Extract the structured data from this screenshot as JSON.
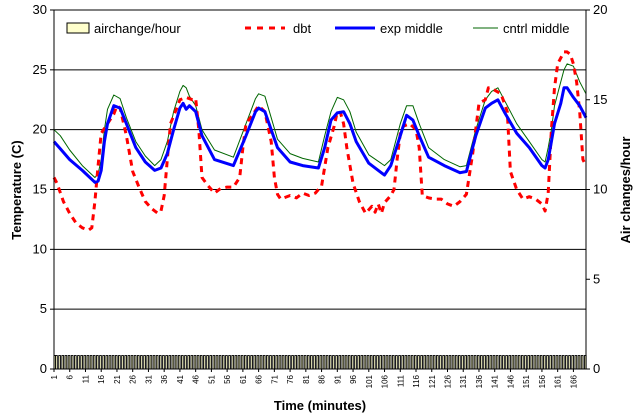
{
  "chart_data": {
    "type": "line",
    "xlabel": "Time (minutes)",
    "ylabel": "Temperature (C)",
    "y2label": "Air changes/hour",
    "ylim": [
      0,
      30
    ],
    "y2lim": [
      0,
      20
    ],
    "yticks": [
      0,
      5,
      10,
      15,
      20,
      25,
      30
    ],
    "y2ticks": [
      0,
      5,
      10,
      15,
      20
    ],
    "xlim": [
      1,
      170
    ],
    "xticks": [
      1,
      6,
      11,
      16,
      21,
      26,
      31,
      36,
      41,
      46,
      51,
      56,
      61,
      66,
      71,
      76,
      81,
      86,
      91,
      96,
      101,
      106,
      111,
      116,
      121,
      126,
      131,
      136,
      141,
      146,
      151,
      156,
      161,
      166
    ],
    "grid": true,
    "legend_position": "top",
    "series": [
      {
        "name": "airchange/hour",
        "axis": "right",
        "style": "area",
        "color": "#ffffcc",
        "edge": "#000000",
        "x": [
          1,
          170
        ],
        "values": [
          0.75,
          0.75
        ]
      },
      {
        "name": "dbt",
        "axis": "left",
        "style": "dashed",
        "color": "#ff0000",
        "x": [
          1,
          2,
          4,
          6,
          8,
          10,
          11,
          12,
          13,
          14,
          15,
          16,
          18,
          20,
          21,
          22,
          24,
          26,
          28,
          30,
          32,
          34,
          35,
          36,
          37,
          38,
          40,
          41,
          43,
          45,
          46,
          47,
          48,
          50,
          52,
          54,
          56,
          58,
          60,
          61,
          62,
          64,
          66,
          68,
          70,
          71,
          72,
          73,
          74,
          76,
          78,
          80,
          82,
          84,
          86,
          88,
          90,
          91,
          92,
          93,
          94,
          96,
          98,
          100,
          102,
          103,
          104,
          105,
          106,
          108,
          109,
          110,
          111,
          112,
          114,
          116,
          117,
          118,
          120,
          122,
          124,
          126,
          128,
          130,
          132,
          134,
          136,
          138,
          139,
          141,
          143,
          145,
          146,
          148,
          150,
          152,
          154,
          156,
          157,
          158,
          159,
          160,
          161,
          162,
          163,
          164,
          165,
          166,
          167,
          168,
          169,
          170
        ],
        "values": [
          16,
          15.5,
          14,
          13,
          12.2,
          11.8,
          11.7,
          11.6,
          11.8,
          14,
          17,
          19.7,
          20.5,
          21.3,
          22,
          21.8,
          19.5,
          16.5,
          15.2,
          14,
          13.4,
          13,
          13.2,
          14.5,
          17.5,
          20.5,
          21.8,
          22.5,
          22.7,
          22.5,
          22.6,
          20,
          16,
          15.3,
          14.7,
          15.1,
          15.2,
          15.2,
          16,
          18.5,
          20.5,
          21.2,
          22,
          21.5,
          19,
          16,
          14.6,
          14.2,
          14.3,
          14.5,
          14.3,
          14.7,
          14.5,
          14.7,
          15.3,
          18.5,
          20.3,
          21.5,
          21.4,
          20.5,
          18.5,
          15.5,
          14,
          13,
          13.6,
          13.1,
          13.8,
          13,
          13.9,
          14.5,
          15,
          17.5,
          19.7,
          20.3,
          20.5,
          20,
          18.5,
          14.5,
          14.3,
          14.2,
          14.2,
          13.8,
          13.6,
          14,
          14.6,
          18,
          22.2,
          22.5,
          23.5,
          23.3,
          23,
          21.5,
          16.5,
          15,
          14.2,
          14.4,
          14.2,
          13.8,
          13.2,
          14.7,
          20,
          23.5,
          25.5,
          26,
          26.5,
          26.5,
          26.3,
          25.5,
          24,
          21.5,
          17.5,
          17
        ]
      },
      {
        "name": "exp middle",
        "axis": "left",
        "style": "thick",
        "color": "#0000ff",
        "x": [
          1,
          3,
          6,
          10,
          14,
          15,
          16,
          17,
          18,
          20,
          22,
          24,
          27,
          30,
          33,
          35,
          37,
          39,
          41,
          42,
          43,
          44,
          46,
          48,
          52,
          58,
          62,
          65,
          66,
          68,
          70,
          72,
          76,
          80,
          85,
          87,
          89,
          91,
          93,
          95,
          97,
          101,
          106,
          108,
          111,
          113,
          115,
          117,
          120,
          125,
          130,
          132,
          135,
          138,
          140,
          142,
          144,
          148,
          152,
          156,
          157,
          158,
          159,
          160,
          162,
          163,
          164,
          166,
          168,
          170
        ],
        "values": [
          19,
          18.4,
          17.5,
          16.6,
          15.6,
          15.7,
          16.6,
          19,
          20.5,
          22,
          21.8,
          20.5,
          18.5,
          17.3,
          16.6,
          16.8,
          18,
          20,
          21.8,
          22.2,
          21.7,
          22,
          21.5,
          19.5,
          17.5,
          17,
          19.5,
          21.5,
          21.8,
          21.5,
          20,
          18.5,
          17.3,
          17,
          16.8,
          18.5,
          20.8,
          21.4,
          21.5,
          20.5,
          19,
          17.2,
          16.2,
          17,
          19.5,
          21.2,
          20.8,
          19.5,
          17.7,
          17,
          16.4,
          16.5,
          19.5,
          21.8,
          22.2,
          22.5,
          21.5,
          19.7,
          18.5,
          17,
          16.8,
          17.5,
          19,
          20.5,
          22.2,
          23.5,
          23.5,
          22.7,
          22,
          21
        ]
      },
      {
        "name": "cntrl middle",
        "axis": "left",
        "style": "thin",
        "color": "#006600",
        "x": [
          1,
          3,
          6,
          10,
          14,
          15,
          16,
          17,
          18,
          20,
          22,
          24,
          27,
          30,
          33,
          35,
          37,
          39,
          41,
          42,
          43,
          44,
          46,
          48,
          52,
          58,
          62,
          65,
          66,
          68,
          70,
          72,
          76,
          80,
          85,
          87,
          89,
          91,
          93,
          95,
          97,
          101,
          106,
          108,
          111,
          113,
          115,
          117,
          120,
          125,
          130,
          132,
          135,
          138,
          140,
          142,
          144,
          148,
          152,
          156,
          157,
          158,
          159,
          160,
          162,
          163,
          164,
          166,
          168,
          170
        ],
        "values": [
          20,
          19.5,
          18.3,
          17,
          16,
          16.3,
          17.5,
          20,
          21.7,
          22.9,
          22.6,
          21,
          19,
          17.8,
          17,
          17.5,
          19,
          21.5,
          23.2,
          23.7,
          23.5,
          22.8,
          22,
          20,
          18.3,
          17.7,
          20.5,
          22.6,
          23,
          22.8,
          21,
          19.2,
          18,
          17.6,
          17.3,
          19.5,
          21.5,
          22.7,
          22.5,
          21.5,
          19.8,
          17.9,
          17,
          17.5,
          20.5,
          22,
          22,
          20.5,
          18.5,
          17.5,
          16.9,
          17,
          20,
          22.5,
          23.2,
          23.5,
          22.5,
          20.5,
          19,
          17.5,
          17.3,
          18.5,
          20,
          22,
          24,
          25,
          25.5,
          25.3,
          24,
          23
        ]
      }
    ]
  }
}
